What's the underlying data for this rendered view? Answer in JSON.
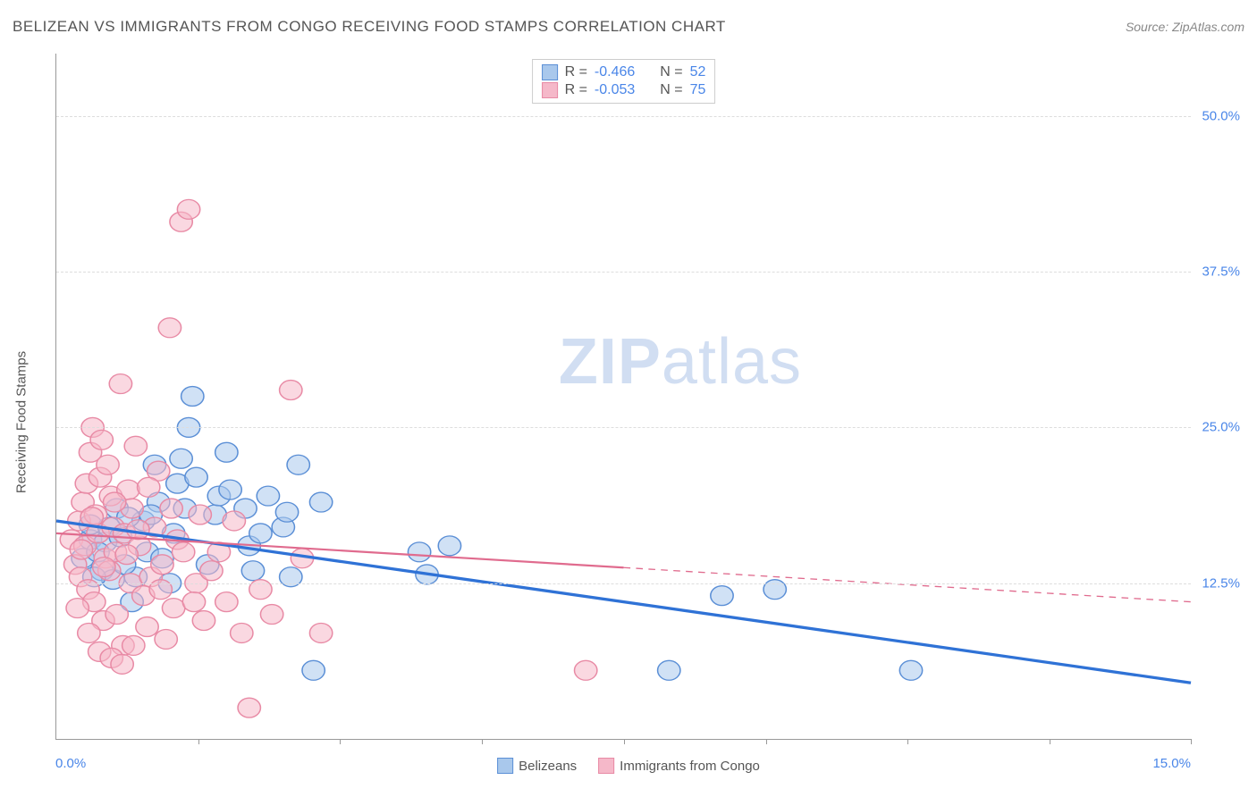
{
  "title": "BELIZEAN VS IMMIGRANTS FROM CONGO RECEIVING FOOD STAMPS CORRELATION CHART",
  "source_label": "Source:",
  "source_value": "ZipAtlas.com",
  "y_axis_label": "Receiving Food Stamps",
  "watermark_bold": "ZIP",
  "watermark_rest": "atlas",
  "chart": {
    "type": "scatter",
    "xlim": [
      0,
      15
    ],
    "ylim": [
      0,
      55
    ],
    "x_left_label": "0.0%",
    "x_right_label": "15.0%",
    "x_ticks": [
      1.88,
      3.75,
      5.63,
      7.5,
      9.38,
      11.25,
      13.13,
      15.0
    ],
    "y_gridlines": [
      {
        "value": 12.5,
        "label": "12.5%"
      },
      {
        "value": 25.0,
        "label": "25.0%"
      },
      {
        "value": 37.5,
        "label": "37.5%"
      },
      {
        "value": 50.0,
        "label": "50.0%"
      }
    ],
    "series": [
      {
        "name": "Belizeans",
        "fill": "#a9c8ec",
        "stroke": "#5b8fd6",
        "marker_radius": 10,
        "fill_opacity": 0.55,
        "R": "-0.466",
        "N": "52",
        "trend": {
          "x1": 0,
          "y1": 17.5,
          "x2": 15,
          "y2": 4.5,
          "solid_until_x": 15,
          "stroke_width": 3,
          "color": "#2f72d6"
        },
        "points": [
          [
            0.35,
            14.5
          ],
          [
            0.45,
            16.0
          ],
          [
            0.45,
            17.2
          ],
          [
            0.6,
            13.5
          ],
          [
            0.65,
            15.8
          ],
          [
            0.7,
            17.0
          ],
          [
            0.75,
            12.8
          ],
          [
            0.8,
            18.5
          ],
          [
            1.0,
            11.0
          ],
          [
            1.05,
            13.0
          ],
          [
            1.15,
            17.5
          ],
          [
            1.2,
            15.0
          ],
          [
            1.3,
            22.0
          ],
          [
            1.35,
            19.0
          ],
          [
            1.5,
            12.5
          ],
          [
            1.55,
            16.5
          ],
          [
            1.6,
            20.5
          ],
          [
            1.65,
            22.5
          ],
          [
            1.75,
            25.0
          ],
          [
            1.8,
            27.5
          ],
          [
            2.0,
            14.0
          ],
          [
            2.1,
            18.0
          ],
          [
            2.15,
            19.5
          ],
          [
            2.25,
            23.0
          ],
          [
            2.5,
            18.5
          ],
          [
            2.55,
            15.5
          ],
          [
            2.6,
            13.5
          ],
          [
            2.8,
            19.5
          ],
          [
            3.0,
            17.0
          ],
          [
            3.05,
            18.2
          ],
          [
            3.1,
            13.0
          ],
          [
            3.4,
            5.5
          ],
          [
            3.5,
            19.0
          ],
          [
            4.8,
            15.0
          ],
          [
            4.9,
            13.2
          ],
          [
            5.2,
            15.5
          ],
          [
            8.1,
            5.5
          ],
          [
            8.8,
            11.5
          ],
          [
            9.5,
            12.0
          ],
          [
            11.3,
            5.5
          ],
          [
            1.85,
            21.0
          ],
          [
            2.3,
            20.0
          ],
          [
            0.9,
            14.0
          ],
          [
            1.4,
            14.5
          ],
          [
            0.55,
            15.0
          ],
          [
            0.95,
            17.8
          ],
          [
            1.7,
            18.5
          ],
          [
            0.5,
            13.0
          ],
          [
            0.85,
            16.2
          ],
          [
            1.25,
            18.0
          ],
          [
            2.7,
            16.5
          ],
          [
            3.2,
            22.0
          ]
        ]
      },
      {
        "name": "Immigrants from Congo",
        "fill": "#f5b8c9",
        "stroke": "#e88aa5",
        "marker_radius": 10,
        "fill_opacity": 0.55,
        "R": "-0.053",
        "N": "75",
        "trend": {
          "x1": 0,
          "y1": 16.5,
          "x2": 15,
          "y2": 11.0,
          "solid_until_x": 7.5,
          "stroke_width": 2,
          "color": "#e06b8e"
        },
        "points": [
          [
            0.2,
            16.0
          ],
          [
            0.25,
            14.0
          ],
          [
            0.3,
            17.5
          ],
          [
            0.32,
            13.0
          ],
          [
            0.35,
            19.0
          ],
          [
            0.38,
            15.5
          ],
          [
            0.4,
            20.5
          ],
          [
            0.42,
            12.0
          ],
          [
            0.45,
            23.0
          ],
          [
            0.48,
            25.0
          ],
          [
            0.5,
            11.0
          ],
          [
            0.52,
            18.0
          ],
          [
            0.55,
            16.5
          ],
          [
            0.58,
            21.0
          ],
          [
            0.6,
            24.0
          ],
          [
            0.62,
            9.5
          ],
          [
            0.65,
            14.5
          ],
          [
            0.68,
            22.0
          ],
          [
            0.7,
            13.5
          ],
          [
            0.72,
            19.5
          ],
          [
            0.75,
            17.0
          ],
          [
            0.78,
            15.0
          ],
          [
            0.8,
            10.0
          ],
          [
            0.85,
            28.5
          ],
          [
            0.88,
            7.5
          ],
          [
            0.9,
            16.5
          ],
          [
            0.95,
            20.0
          ],
          [
            0.98,
            12.5
          ],
          [
            1.0,
            18.5
          ],
          [
            1.05,
            23.5
          ],
          [
            1.1,
            15.5
          ],
          [
            1.15,
            11.5
          ],
          [
            1.2,
            9.0
          ],
          [
            1.25,
            13.0
          ],
          [
            1.3,
            17.0
          ],
          [
            1.35,
            21.5
          ],
          [
            1.4,
            14.0
          ],
          [
            1.45,
            8.0
          ],
          [
            1.5,
            33.0
          ],
          [
            1.55,
            10.5
          ],
          [
            1.6,
            16.0
          ],
          [
            1.65,
            41.5
          ],
          [
            1.75,
            42.5
          ],
          [
            1.85,
            12.5
          ],
          [
            1.9,
            18.0
          ],
          [
            1.95,
            9.5
          ],
          [
            2.05,
            13.5
          ],
          [
            2.15,
            15.0
          ],
          [
            2.25,
            11.0
          ],
          [
            2.35,
            17.5
          ],
          [
            2.45,
            8.5
          ],
          [
            2.55,
            2.5
          ],
          [
            2.7,
            12.0
          ],
          [
            2.85,
            10.0
          ],
          [
            3.1,
            28.0
          ],
          [
            3.25,
            14.5
          ],
          [
            3.5,
            8.5
          ],
          [
            7.0,
            5.5
          ],
          [
            0.33,
            15.2
          ],
          [
            0.47,
            17.8
          ],
          [
            0.63,
            13.8
          ],
          [
            0.77,
            19.0
          ],
          [
            0.93,
            14.8
          ],
          [
            1.08,
            16.8
          ],
          [
            1.22,
            20.2
          ],
          [
            1.38,
            12.0
          ],
          [
            1.52,
            18.5
          ],
          [
            1.68,
            15.0
          ],
          [
            1.82,
            11.0
          ],
          [
            0.28,
            10.5
          ],
          [
            0.43,
            8.5
          ],
          [
            0.57,
            7.0
          ],
          [
            0.73,
            6.5
          ],
          [
            0.87,
            6.0
          ],
          [
            1.02,
            7.5
          ]
        ]
      }
    ],
    "bottom_legend": [
      {
        "label": "Belizeans",
        "fill": "#a9c8ec",
        "stroke": "#5b8fd6"
      },
      {
        "label": "Immigrants from Congo",
        "fill": "#f5b8c9",
        "stroke": "#e88aa5"
      }
    ]
  }
}
